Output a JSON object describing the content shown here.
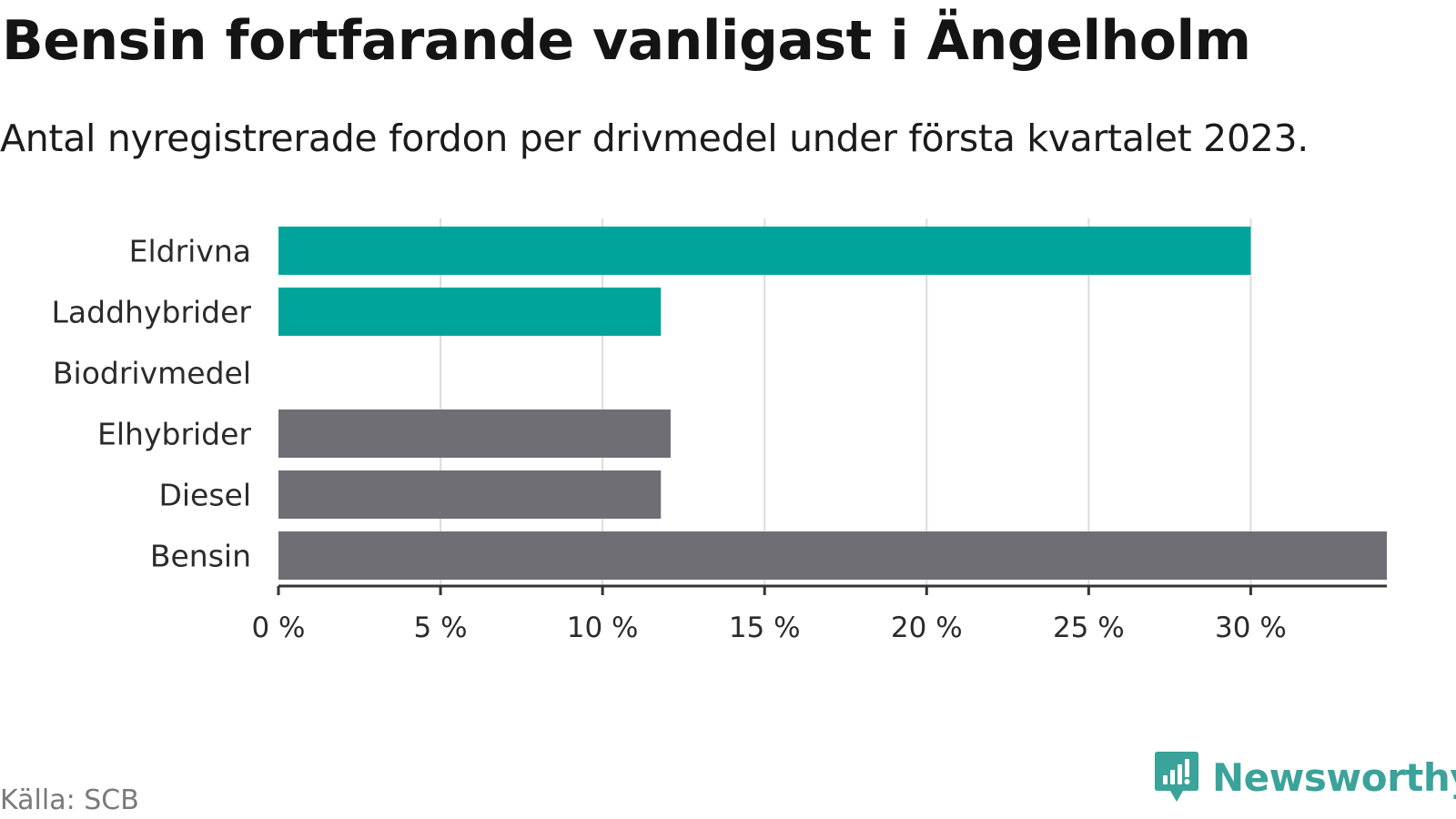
{
  "header": {
    "title": "Bensin fortfarande vanligast i Ängelholm",
    "subtitle": "Antal nyregistrerade fordon per drivmedel under första kvartalet 2023."
  },
  "footer": {
    "source": "Källa: SCB",
    "brand": "Newsworthy",
    "brand_icon": "newsworthy-logo-icon",
    "brand_color": "#3aa39a"
  },
  "chart_data": {
    "type": "bar",
    "orientation": "horizontal",
    "categories": [
      "Eldrivna",
      "Laddhybrider",
      "Biodrivmedel",
      "Elhybrider",
      "Diesel",
      "Bensin"
    ],
    "values": [
      30.0,
      11.8,
      0,
      12.1,
      11.8,
      34.2
    ],
    "colors": [
      "#00a49a",
      "#00a49a",
      "#00a49a",
      "#6f6e75",
      "#6f6e75",
      "#6f6e75"
    ],
    "xlim": [
      0,
      34.2
    ],
    "xticks": [
      0,
      5,
      10,
      15,
      20,
      25,
      30
    ],
    "xtick_labels": [
      "0 %",
      "5 %",
      "10 %",
      "15 %",
      "20 %",
      "25 %",
      "30 %"
    ],
    "grid": true,
    "xlabel": "",
    "ylabel": ""
  }
}
